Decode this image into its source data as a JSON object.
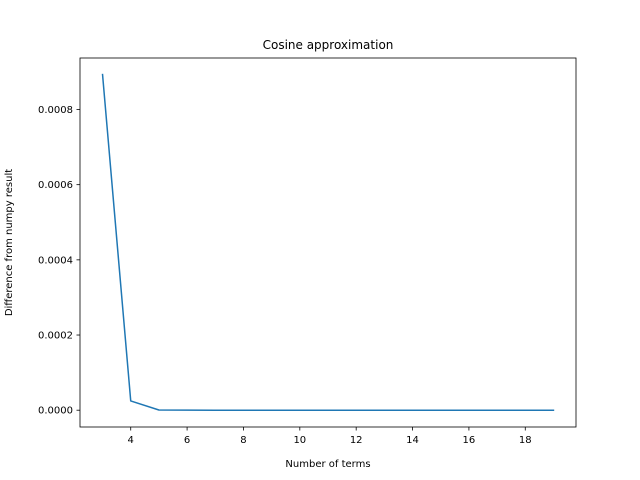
{
  "chart_data": {
    "type": "line",
    "title": "Cosine approximation",
    "xlabel": "Number of terms",
    "ylabel": "Difference from numpy result",
    "xlim": [
      2.2,
      19.8
    ],
    "ylim": [
      -4.47e-05,
      0.000937
    ],
    "xticks": [
      4,
      6,
      8,
      10,
      12,
      14,
      16,
      18
    ],
    "xtick_labels": [
      "4",
      "6",
      "8",
      "10",
      "12",
      "14",
      "16",
      "18"
    ],
    "yticks": [
      0,
      0.0002,
      0.0004,
      0.0006,
      0.0008
    ],
    "ytick_labels": [
      "0.0000",
      "0.0002",
      "0.0004",
      "0.0006",
      "0.0008"
    ],
    "grid": false,
    "series": [
      {
        "color": "#1f77b4",
        "x": [
          3,
          4,
          5,
          6,
          7,
          8,
          9,
          10,
          11,
          12,
          13,
          14,
          15,
          16,
          17,
          18,
          19
        ],
        "y": [
          0.000893,
          2.47e-05,
          5e-07,
          1e-07,
          0,
          0,
          0,
          0,
          0,
          0,
          0,
          0,
          0,
          0,
          0,
          0,
          0
        ]
      }
    ]
  }
}
